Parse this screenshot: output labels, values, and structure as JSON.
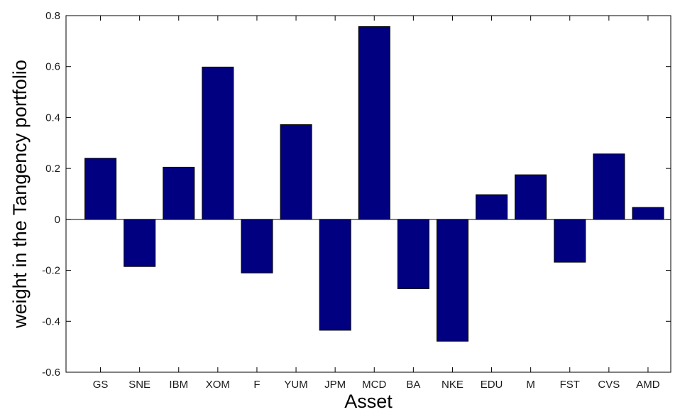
{
  "chart_data": {
    "type": "bar",
    "title": "",
    "xlabel": "Asset",
    "ylabel": "weight in the Tangency portfolio",
    "categories": [
      "GS",
      "SNE",
      "IBM",
      "XOM",
      "F",
      "YUM",
      "JPM",
      "MCD",
      "BA",
      "NKE",
      "EDU",
      "M",
      "FST",
      "CVS",
      "AMD"
    ],
    "values": [
      0.24,
      -0.185,
      0.205,
      0.598,
      -0.21,
      0.372,
      -0.435,
      0.757,
      -0.272,
      -0.478,
      0.097,
      0.175,
      -0.168,
      0.257,
      0.047
    ],
    "ylim": [
      -0.6,
      0.8
    ],
    "yticks": [
      -0.6,
      -0.4,
      -0.2,
      0,
      0.2,
      0.4,
      0.6,
      0.8
    ],
    "ytick_labels": [
      "-0.6",
      "-0.4",
      "-0.2",
      "0",
      "0.2",
      "0.4",
      "0.6",
      "0.8"
    ],
    "grid": false,
    "bar_color": "#000080",
    "edge_color": "#000000"
  }
}
